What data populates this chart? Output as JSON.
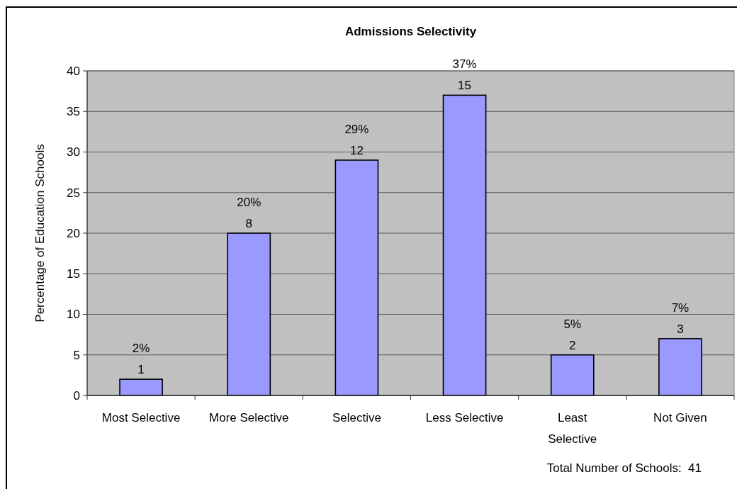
{
  "chart_data": {
    "type": "bar",
    "title": "Admissions Selectivity",
    "ylabel": "Percentage of Education Schools",
    "categories": [
      "Most Selective",
      "More Selective",
      "Selective",
      "Less Selective",
      "Least Selective",
      "Not Given"
    ],
    "values": [
      2,
      20,
      29,
      37,
      5,
      7
    ],
    "color": "#9999ff",
    "value_labels": [
      "2%\n1",
      "20%\n8",
      "29%\n12",
      "37%\n15",
      "5%\n2",
      "7%\n3"
    ],
    "ylim": [
      0,
      40
    ],
    "yticks": [
      0,
      5,
      10,
      15,
      20,
      25,
      30,
      35,
      40
    ],
    "grid": "y",
    "annotations": [
      "Total Number of Schools:  41"
    ]
  }
}
